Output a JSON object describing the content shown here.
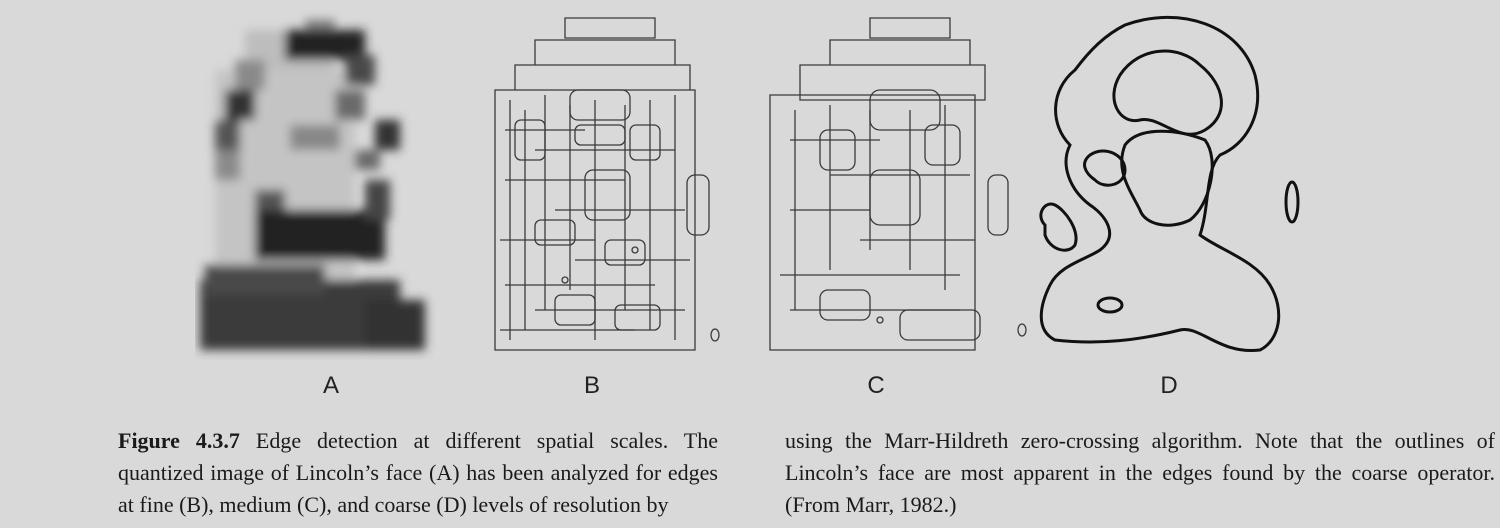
{
  "panels": {
    "a_label": "A",
    "b_label": "B",
    "c_label": "C",
    "d_label": "D"
  },
  "caption": {
    "figure_number": "Figure 4.3.7",
    "col1_text": "Edge detection at different spatial scales. The quantized image of Lincoln’s face (A) has been analyzed for edges at fine (B), medium (C), and coarse (D) levels of resolution by",
    "col2_text": "using the Marr-Hildreth zero-crossing algorithm. Note that the outlines of Lincoln’s face are most apparent in the edges found by the coarse operator. (From Marr, 1982.)"
  },
  "colors": {
    "background": "#d9d9d9",
    "ink": "#1a1a1a"
  }
}
